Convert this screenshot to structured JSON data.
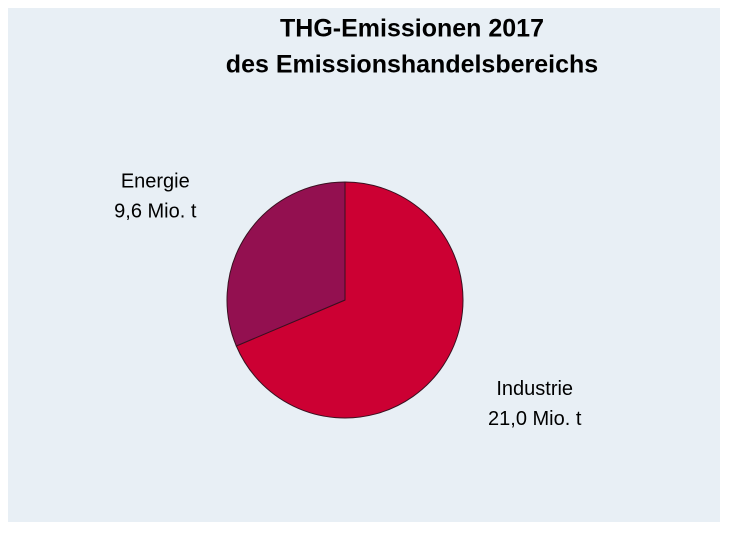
{
  "chart_data": {
    "type": "pie",
    "title": [
      "THG-Emissionen 2017",
      "des Emissionshandelsbereichs"
    ],
    "categories": [
      "Industrie",
      "Energie"
    ],
    "values": [
      21.0,
      9.6
    ],
    "value_labels": [
      "21,0 Mio. t",
      "9,6 Mio. t"
    ],
    "colors": [
      "#cc0033",
      "#931050"
    ]
  }
}
